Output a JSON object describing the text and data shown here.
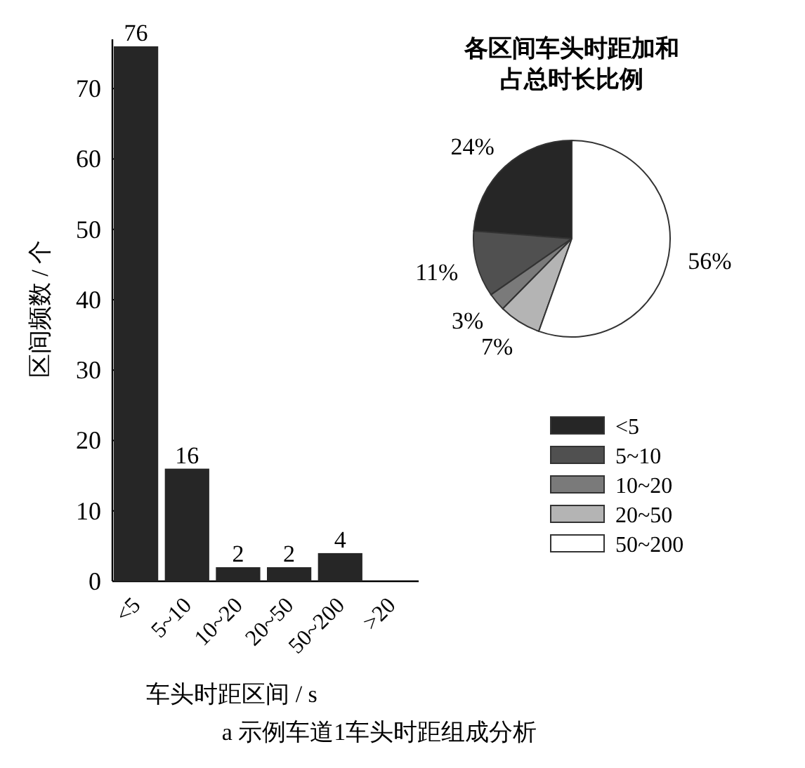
{
  "chart_data": [
    {
      "type": "bar",
      "categories": [
        "<5",
        "5~10",
        "10~20",
        "20~50",
        "50~200",
        ">20"
      ],
      "values": [
        76,
        16,
        2,
        2,
        4,
        null
      ],
      "color": "#262626",
      "ylim": [
        0,
        77
      ],
      "yticks": [
        0,
        10,
        20,
        30,
        40,
        50,
        60,
        70
      ],
      "xlabel": "车头时距区间 / s",
      "ylabel": "区间频数 / 个",
      "data_labels": true,
      "annotations": [
        "a 示例车道1车头时距组成分析"
      ]
    },
    {
      "type": "pie",
      "title": "各区间车头时距加和占总时长比例",
      "categories": [
        "<5",
        "5~10",
        "10~20",
        "20~50",
        "50~200"
      ],
      "values": [
        24,
        11,
        3,
        7,
        56
      ],
      "value_labels": [
        "24%",
        "11%",
        "3%",
        "7%",
        "56%"
      ],
      "colors": [
        "#262626",
        "#505050",
        "#7a7a7a",
        "#b4b4b4",
        "#ffffff"
      ],
      "legend": "bottom"
    }
  ]
}
